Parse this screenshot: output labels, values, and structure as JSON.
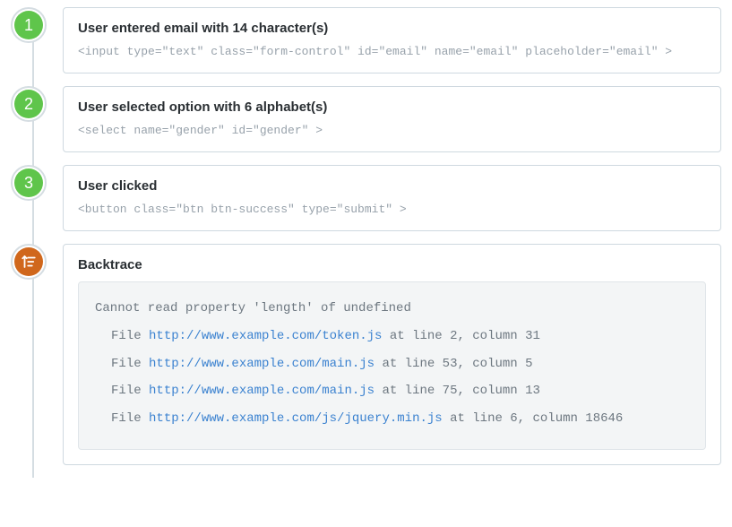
{
  "colors": {
    "badge_green": "#5fc54b",
    "badge_orange": "#d0671c",
    "border": "#cfd9e0",
    "vline": "#d5dde2",
    "muted": "#98a2ab",
    "trace_bg": "#f3f5f6",
    "trace_text": "#6d7780",
    "link": "#3b82d0"
  },
  "steps": [
    {
      "num": "1",
      "title": "User entered email with 14 character(s)",
      "code": "<input type=\"text\" class=\"form-control\" id=\"email\" name=\"email\" placeholder=\"email\" >"
    },
    {
      "num": "2",
      "title": "User selected option with 6 alphabet(s)",
      "code": "<select name=\"gender\" id=\"gender\" >"
    },
    {
      "num": "3",
      "title": "User clicked",
      "code": "<button class=\"btn btn-success\" type=\"submit\" >"
    }
  ],
  "backtrace": {
    "title": "Backtrace",
    "error": "Cannot read property 'length' of undefined",
    "file_prefix": "File ",
    "frames": [
      {
        "url": "http://www.example.com/token.js",
        "suffix": " at line 2, column 31"
      },
      {
        "url": "http://www.example.com/main.js",
        "suffix": " at line 53, column 5"
      },
      {
        "url": "http://www.example.com/main.js",
        "suffix": " at line 75, column 13"
      },
      {
        "url": "http://www.example.com/js/jquery.min.js",
        "suffix": " at line 6, column 18646"
      }
    ]
  }
}
